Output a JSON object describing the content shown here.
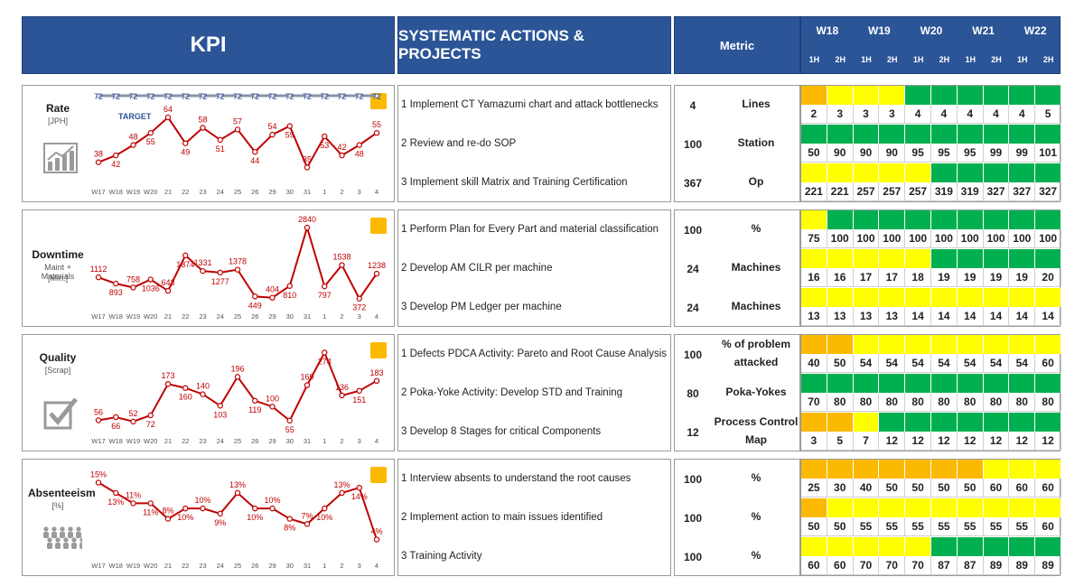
{
  "header": {
    "kpi": "KPI",
    "actions": "SYSTEMATIC ACTIONS & PROJECTS",
    "metric": "Metric",
    "weeks": [
      "W18",
      "W19",
      "W20",
      "W21",
      "W22"
    ],
    "halves": [
      "1H",
      "2H",
      "1H",
      "2H",
      "1H",
      "2H",
      "1H",
      "2H",
      "1H",
      "2H"
    ]
  },
  "colors": {
    "header_bg": "#2b5597",
    "series": "#c00000",
    "target": "#2b5597",
    "orange": "#fbb900",
    "yellow": "#ffff00",
    "green": "#00b050"
  },
  "kpis": [
    {
      "name": "Rate",
      "sub": "[JPH]",
      "icon": "bar-chart-growth-icon",
      "target_label": "TARGET",
      "actions": [
        "1  Implement CT Yamazumi chart and attack bottlenecks",
        "2 Review and re-do SOP",
        "3 Implement skill Matrix and Training Certification"
      ],
      "metrics": [
        {
          "num": "4",
          "unit": "Lines",
          "colors": [
            "orange",
            "yellow",
            "yellow",
            "yellow",
            "green",
            "green",
            "green",
            "green",
            "green",
            "green"
          ],
          "values": [
            "2",
            "3",
            "3",
            "3",
            "4",
            "4",
            "4",
            "4",
            "4",
            "5"
          ]
        },
        {
          "num": "100",
          "unit": "Station",
          "colors": [
            "green",
            "green",
            "green",
            "green",
            "green",
            "green",
            "green",
            "green",
            "green",
            "green"
          ],
          "values": [
            "50",
            "90",
            "90",
            "90",
            "95",
            "95",
            "95",
            "99",
            "99",
            "101"
          ]
        },
        {
          "num": "367",
          "unit": "Op",
          "colors": [
            "yellow",
            "yellow",
            "yellow",
            "yellow",
            "yellow",
            "green",
            "green",
            "green",
            "green",
            "green"
          ],
          "values": [
            "221",
            "221",
            "257",
            "257",
            "257",
            "319",
            "319",
            "327",
            "327",
            "327"
          ]
        }
      ]
    },
    {
      "name": "Downtime",
      "sub": "Maint + Materials",
      "sub2": "[Min.]",
      "icon": "gears-icon",
      "actions": [
        "1  Perform Plan for Every Part and material classification",
        "2  Develop AM CILR per machine",
        "3  Develop PM Ledger per machine"
      ],
      "metrics": [
        {
          "num": "100",
          "unit": "%",
          "colors": [
            "yellow",
            "green",
            "green",
            "green",
            "green",
            "green",
            "green",
            "green",
            "green",
            "green"
          ],
          "values": [
            "75",
            "100",
            "100",
            "100",
            "100",
            "100",
            "100",
            "100",
            "100",
            "100"
          ]
        },
        {
          "num": "24",
          "unit": "Machines",
          "colors": [
            "yellow",
            "yellow",
            "yellow",
            "yellow",
            "yellow",
            "green",
            "green",
            "green",
            "green",
            "green"
          ],
          "values": [
            "16",
            "16",
            "17",
            "17",
            "18",
            "19",
            "19",
            "19",
            "19",
            "20"
          ]
        },
        {
          "num": "24",
          "unit": "Machines",
          "colors": [
            "yellow",
            "yellow",
            "yellow",
            "yellow",
            "yellow",
            "yellow",
            "yellow",
            "yellow",
            "yellow",
            "yellow"
          ],
          "values": [
            "13",
            "13",
            "13",
            "13",
            "14",
            "14",
            "14",
            "14",
            "14",
            "14"
          ]
        }
      ]
    },
    {
      "name": "Quality",
      "sub": "[Scrap]",
      "icon": "checkbox-icon",
      "actions": [
        "1  Defects PDCA Activity: Pareto and Root Cause Analysis",
        "2  Poka-Yoke Activity: Develop STD and Training",
        "3  Develop 8 Stages for critical Components"
      ],
      "metrics": [
        {
          "num": "100",
          "unit": "% of problem attacked",
          "colors": [
            "orange",
            "orange",
            "yellow",
            "yellow",
            "yellow",
            "yellow",
            "yellow",
            "yellow",
            "yellow",
            "yellow"
          ],
          "values": [
            "40",
            "50",
            "54",
            "54",
            "54",
            "54",
            "54",
            "54",
            "54",
            "60"
          ]
        },
        {
          "num": "80",
          "unit": "Poka-Yokes",
          "colors": [
            "green",
            "green",
            "green",
            "green",
            "green",
            "green",
            "green",
            "green",
            "green",
            "green"
          ],
          "values": [
            "70",
            "80",
            "80",
            "80",
            "80",
            "80",
            "80",
            "80",
            "80",
            "80"
          ]
        },
        {
          "num": "12",
          "unit": "Process Control Map",
          "colors": [
            "orange",
            "orange",
            "yellow",
            "green",
            "green",
            "green",
            "green",
            "green",
            "green",
            "green"
          ],
          "values": [
            "3",
            "5",
            "7",
            "12",
            "12",
            "12",
            "12",
            "12",
            "12",
            "12"
          ]
        }
      ]
    },
    {
      "name": "Absenteeism",
      "sub": "[%]",
      "icon": "people-icon",
      "actions": [
        "1  Interview absents to understand the root causes",
        "2  Implement action to main issues identified",
        "3  Training Activity"
      ],
      "metrics": [
        {
          "num": "100",
          "unit": "%",
          "colors": [
            "orange",
            "orange",
            "orange",
            "orange",
            "orange",
            "orange",
            "orange",
            "yellow",
            "yellow",
            "yellow"
          ],
          "values": [
            "25",
            "30",
            "40",
            "50",
            "50",
            "50",
            "50",
            "60",
            "60",
            "60"
          ]
        },
        {
          "num": "100",
          "unit": "%",
          "colors": [
            "orange",
            "yellow",
            "yellow",
            "yellow",
            "yellow",
            "yellow",
            "yellow",
            "yellow",
            "yellow",
            "yellow"
          ],
          "values": [
            "50",
            "50",
            "55",
            "55",
            "55",
            "55",
            "55",
            "55",
            "55",
            "60"
          ]
        },
        {
          "num": "100",
          "unit": "%",
          "colors": [
            "yellow",
            "yellow",
            "yellow",
            "yellow",
            "yellow",
            "green",
            "green",
            "green",
            "green",
            "green"
          ],
          "values": [
            "60",
            "60",
            "70",
            "70",
            "70",
            "87",
            "87",
            "89",
            "89",
            "89"
          ]
        }
      ]
    }
  ],
  "chart_data": [
    {
      "type": "line",
      "title": "Rate",
      "x": [
        "W17",
        "W18",
        "W19",
        "W20",
        "21",
        "22",
        "23",
        "24",
        "25",
        "26",
        "29",
        "30",
        "31",
        "1",
        "2",
        "3",
        "4"
      ],
      "series": [
        {
          "name": "TARGET",
          "values": [
            72,
            72,
            72,
            72,
            72,
            72,
            72,
            72,
            72,
            72,
            72,
            72,
            72,
            72,
            72,
            72,
            72
          ]
        },
        {
          "values": [
            38,
            42,
            48,
            55,
            64,
            49,
            58,
            51,
            57,
            44,
            54,
            59,
            35,
            53,
            42,
            48,
            55
          ]
        }
      ],
      "ylim": [
        30,
        75
      ]
    },
    {
      "type": "line",
      "title": "Downtime",
      "x": [
        "W17",
        "W18",
        "W19",
        "W20",
        "21",
        "22",
        "23",
        "24",
        "25",
        "26",
        "29",
        "30",
        "31",
        "1",
        "2",
        "3",
        "4"
      ],
      "series": [
        {
          "values": [
            1112,
            893,
            758,
            1036,
            643,
            1874,
            1331,
            1277,
            1378,
            449,
            404,
            810,
            2840,
            797,
            1538,
            372,
            1238
          ]
        }
      ],
      "ylim": [
        300,
        3000
      ]
    },
    {
      "type": "line",
      "title": "Quality",
      "x": [
        "W17",
        "W18",
        "W19",
        "W20",
        "21",
        "22",
        "23",
        "24",
        "25",
        "26",
        "29",
        "30",
        "31",
        "1",
        "2",
        "3",
        "4"
      ],
      "series": [
        {
          "values": [
            56,
            66,
            52,
            72,
            173,
            160,
            140,
            103,
            196,
            119,
            100,
            55,
            169,
            274,
            136,
            151,
            183
          ]
        }
      ],
      "ylim": [
        40,
        290
      ]
    },
    {
      "type": "line",
      "title": "Absenteeism",
      "x": [
        "W17",
        "W18",
        "W19",
        "W20",
        "21",
        "22",
        "23",
        "24",
        "25",
        "26",
        "29",
        "30",
        "31",
        "1",
        "2",
        "3",
        "4"
      ],
      "series": [
        {
          "values": [
            15,
            13,
            11,
            11,
            8,
            10,
            10,
            9,
            13,
            10,
            10,
            8,
            7,
            10,
            13,
            14,
            4
          ]
        }
      ],
      "value_labels": [
        "15%",
        "13%",
        "11%",
        "11%",
        "8%",
        "10%",
        "10%",
        "9%",
        "13%",
        "10%",
        "10%",
        "8%",
        "7%",
        "10%",
        "13%",
        "14%",
        "4%"
      ],
      "ylim": [
        2,
        17
      ]
    }
  ]
}
